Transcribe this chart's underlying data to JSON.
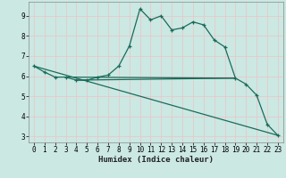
{
  "xlabel": "Humidex (Indice chaleur)",
  "background_color": "#cbe8e3",
  "grid_color": "#e8c8c8",
  "line_color": "#1a6b5a",
  "xlim": [
    -0.5,
    23.5
  ],
  "ylim": [
    2.7,
    9.7
  ],
  "yticks": [
    3,
    4,
    5,
    6,
    7,
    8,
    9
  ],
  "xticks": [
    0,
    1,
    2,
    3,
    4,
    5,
    6,
    7,
    8,
    9,
    10,
    11,
    12,
    13,
    14,
    15,
    16,
    17,
    18,
    19,
    20,
    21,
    22,
    23
  ],
  "curve1_x": [
    0,
    1,
    2,
    3,
    4,
    5,
    6,
    7,
    8,
    9,
    10,
    11,
    12,
    13,
    14,
    15,
    16,
    17,
    18,
    19,
    20,
    21,
    22,
    23
  ],
  "curve1_y": [
    6.5,
    6.2,
    5.95,
    5.95,
    5.8,
    5.8,
    5.95,
    6.05,
    6.5,
    7.5,
    9.35,
    8.8,
    9.0,
    8.3,
    8.4,
    8.7,
    8.55,
    7.8,
    7.45,
    5.9,
    5.6,
    5.05,
    3.6,
    3.05
  ],
  "curve2_x": [
    0,
    23
  ],
  "curve2_y": [
    6.5,
    3.05
  ],
  "curve3_x": [
    3,
    19
  ],
  "curve3_y": [
    5.95,
    5.9
  ],
  "curve4_x": [
    4,
    19
  ],
  "curve4_y": [
    5.8,
    5.9
  ]
}
